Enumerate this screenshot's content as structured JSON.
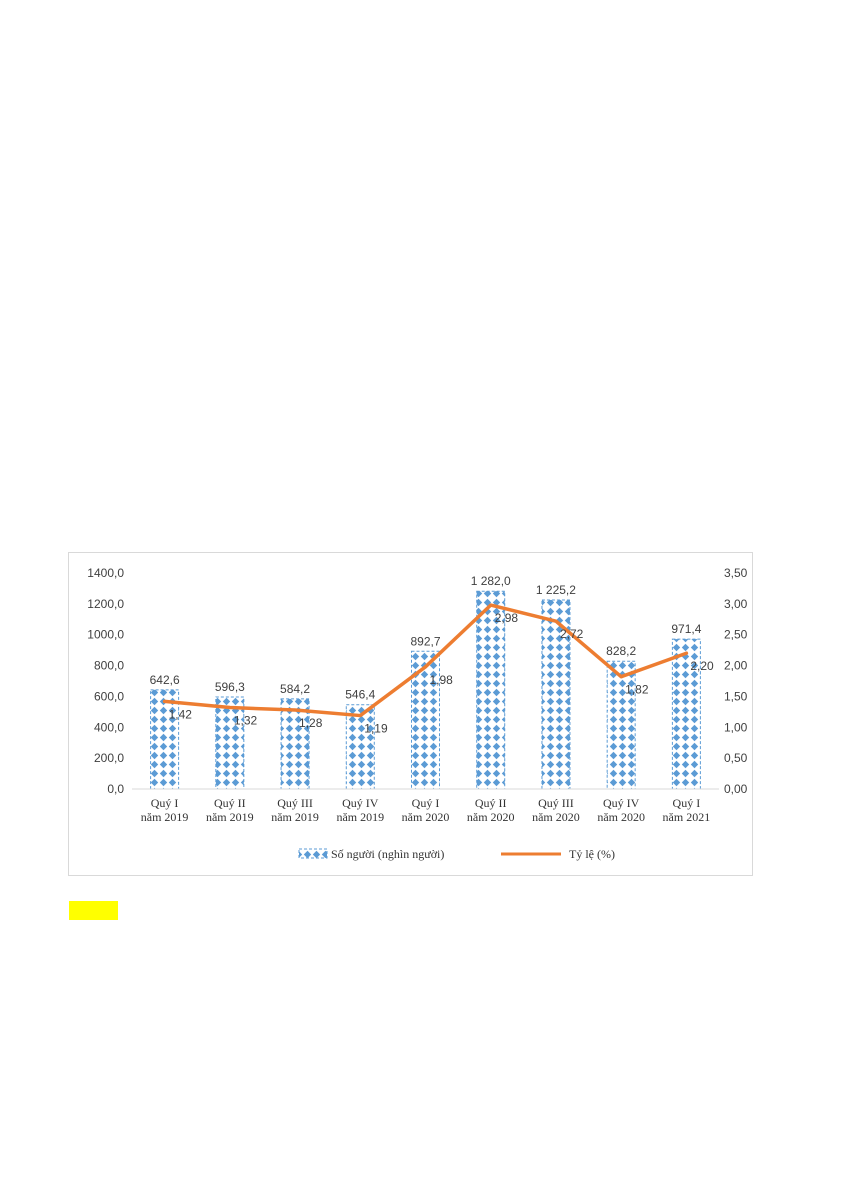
{
  "chart_data": {
    "type": "bar",
    "categories": [
      [
        "Quý I",
        "năm 2019"
      ],
      [
        "Quý II",
        "năm 2019"
      ],
      [
        "Quý III",
        "năm 2019"
      ],
      [
        "Quý IV",
        "năm 2019"
      ],
      [
        "Quý I",
        "năm 2020"
      ],
      [
        "Quý II",
        "năm 2020"
      ],
      [
        "Quý III",
        "năm 2020"
      ],
      [
        "Quý IV",
        "năm 2020"
      ],
      [
        "Quý I",
        "năm 2021"
      ]
    ],
    "series": [
      {
        "name": "Số người (nghìn người)",
        "type": "bar",
        "axis": "left",
        "values": [
          642.6,
          596.3,
          584.2,
          546.4,
          892.7,
          1282.0,
          1225.2,
          828.2,
          971.4
        ],
        "labels": [
          "642,6",
          "596,3",
          "584,2",
          "546,4",
          "892,7",
          "1 282,0",
          "1 225,2",
          "828,2",
          "971,4"
        ],
        "color": "#5b9bd5"
      },
      {
        "name": "Tỷ lệ (%)",
        "type": "line",
        "axis": "right",
        "values": [
          1.42,
          1.32,
          1.28,
          1.19,
          1.98,
          2.98,
          2.72,
          1.82,
          2.2
        ],
        "labels": [
          "1,42",
          "1,32",
          "1,28",
          "1,19",
          "1,98",
          "2,98",
          "2,72",
          "1,82",
          "2,20"
        ],
        "color": "#ed7d31"
      }
    ],
    "y_left": {
      "min": 0,
      "max": 1400,
      "ticks": [
        "0,0",
        "200,0",
        "400,0",
        "600,0",
        "800,0",
        "1000,0",
        "1200,0",
        "1400,0"
      ]
    },
    "y_right": {
      "min": 0,
      "max": 3.5,
      "ticks": [
        "0,00",
        "0,50",
        "1,00",
        "1,50",
        "2,00",
        "2,50",
        "3,00",
        "3,50"
      ]
    },
    "grid": false,
    "legend": "bottom"
  },
  "highlight_color": "#ffff00"
}
